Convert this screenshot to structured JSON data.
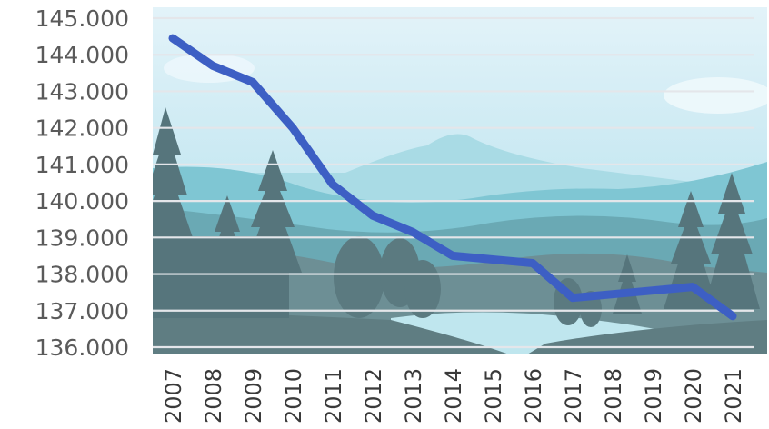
{
  "chart_data": {
    "type": "line",
    "title": "",
    "xlabel": "",
    "ylabel": "",
    "x": [
      "2007",
      "2008",
      "2009",
      "2010",
      "2011",
      "2012",
      "2013",
      "2014",
      "2015",
      "2016",
      "2017",
      "2018",
      "2019",
      "2020",
      "2021"
    ],
    "series": [
      {
        "values": [
          144.45,
          143.7,
          143.25,
          142.0,
          140.45,
          139.6,
          139.15,
          138.5,
          138.4,
          138.3,
          137.35,
          137.45,
          137.55,
          137.65,
          136.85
        ]
      }
    ],
    "ylim": [
      136.0,
      145.0
    ],
    "yticks": [
      145,
      144,
      143,
      142,
      141,
      140,
      139,
      138,
      137,
      136
    ],
    "ytick_labels": [
      "145.000",
      "144.000",
      "143.000",
      "142.000",
      "141.000",
      "140.000",
      "139.000",
      "138.000",
      "137.000",
      "136.000"
    ],
    "grid": true,
    "legend": "none",
    "colors": {
      "line": "#3d5fc4",
      "grid": "#e4e6ea",
      "sky_top": "#dff1f8",
      "sky_bottom": "#b8e0ec"
    }
  }
}
